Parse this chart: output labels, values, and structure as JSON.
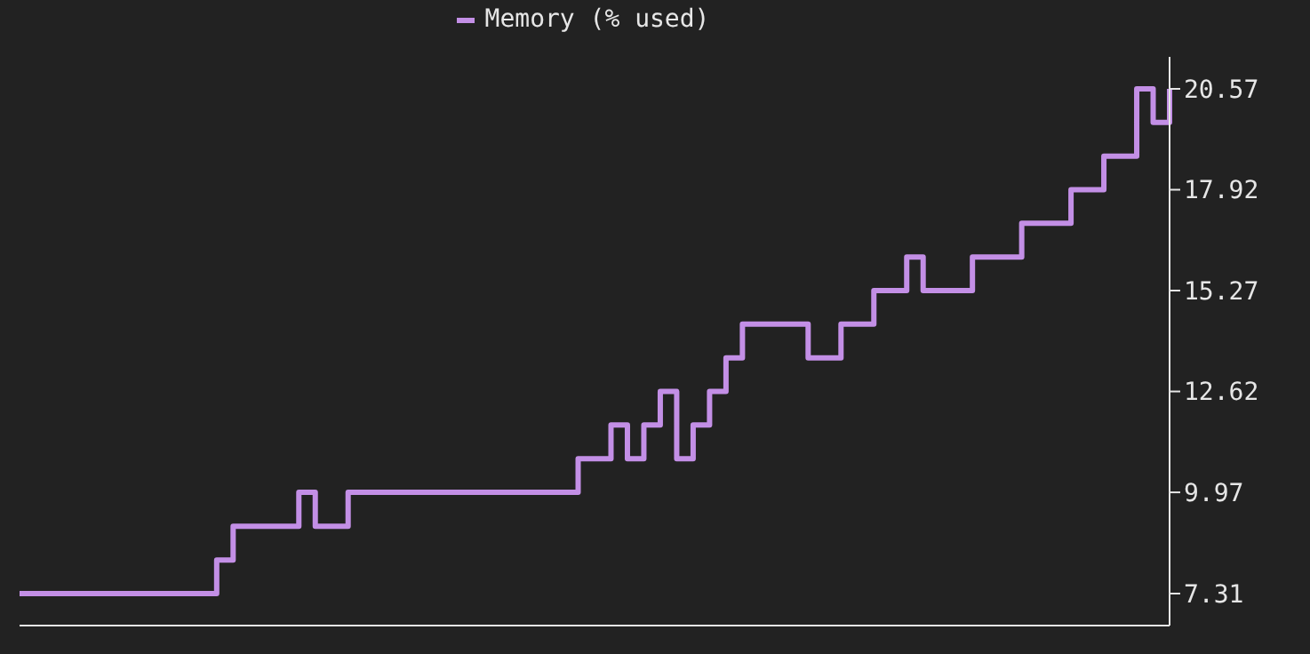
{
  "chart_data": {
    "type": "step",
    "categories": [
      null,
      null,
      null,
      null,
      null,
      null,
      null,
      null,
      null,
      null,
      null,
      null,
      null,
      null,
      null,
      null,
      null,
      null,
      null,
      null,
      null,
      null,
      null,
      null,
      null,
      null,
      null,
      null,
      null,
      null,
      null,
      null,
      null,
      null,
      null,
      null,
      null,
      null,
      null,
      null,
      null,
      null,
      null,
      null,
      null,
      null,
      null,
      null,
      null,
      null,
      null,
      null,
      null,
      null,
      null,
      null,
      null,
      null,
      null,
      null,
      null,
      null,
      null,
      null,
      null,
      null,
      null,
      null,
      null,
      null,
      null
    ],
    "series": [
      {
        "name": "Memory (% used)",
        "color": "#c38fe6",
        "values": [
          7.31,
          7.31,
          7.31,
          7.31,
          7.31,
          7.31,
          7.31,
          7.31,
          7.31,
          7.31,
          7.31,
          7.31,
          8.19,
          9.08,
          9.08,
          9.08,
          9.08,
          9.97,
          9.08,
          9.08,
          9.97,
          9.97,
          9.97,
          9.97,
          9.97,
          9.97,
          9.97,
          9.97,
          9.97,
          9.97,
          9.97,
          9.97,
          9.97,
          9.97,
          10.85,
          10.85,
          11.74,
          10.85,
          11.74,
          12.62,
          10.85,
          11.74,
          12.62,
          13.5,
          14.39,
          14.39,
          14.39,
          14.39,
          13.5,
          13.5,
          14.39,
          14.39,
          15.27,
          15.27,
          16.15,
          15.27,
          15.27,
          15.27,
          16.15,
          16.15,
          16.15,
          17.04,
          17.04,
          17.04,
          17.92,
          17.92,
          18.8,
          18.8,
          20.57,
          19.69,
          20.57
        ]
      }
    ],
    "ylim": [
      6.47,
      21.41
    ],
    "yticks": [
      7.31,
      9.97,
      12.62,
      15.27,
      17.92,
      20.57
    ],
    "tick_labels": "y",
    "grid": false,
    "legend": "top",
    "marker": "none",
    "line_style": "solid"
  }
}
